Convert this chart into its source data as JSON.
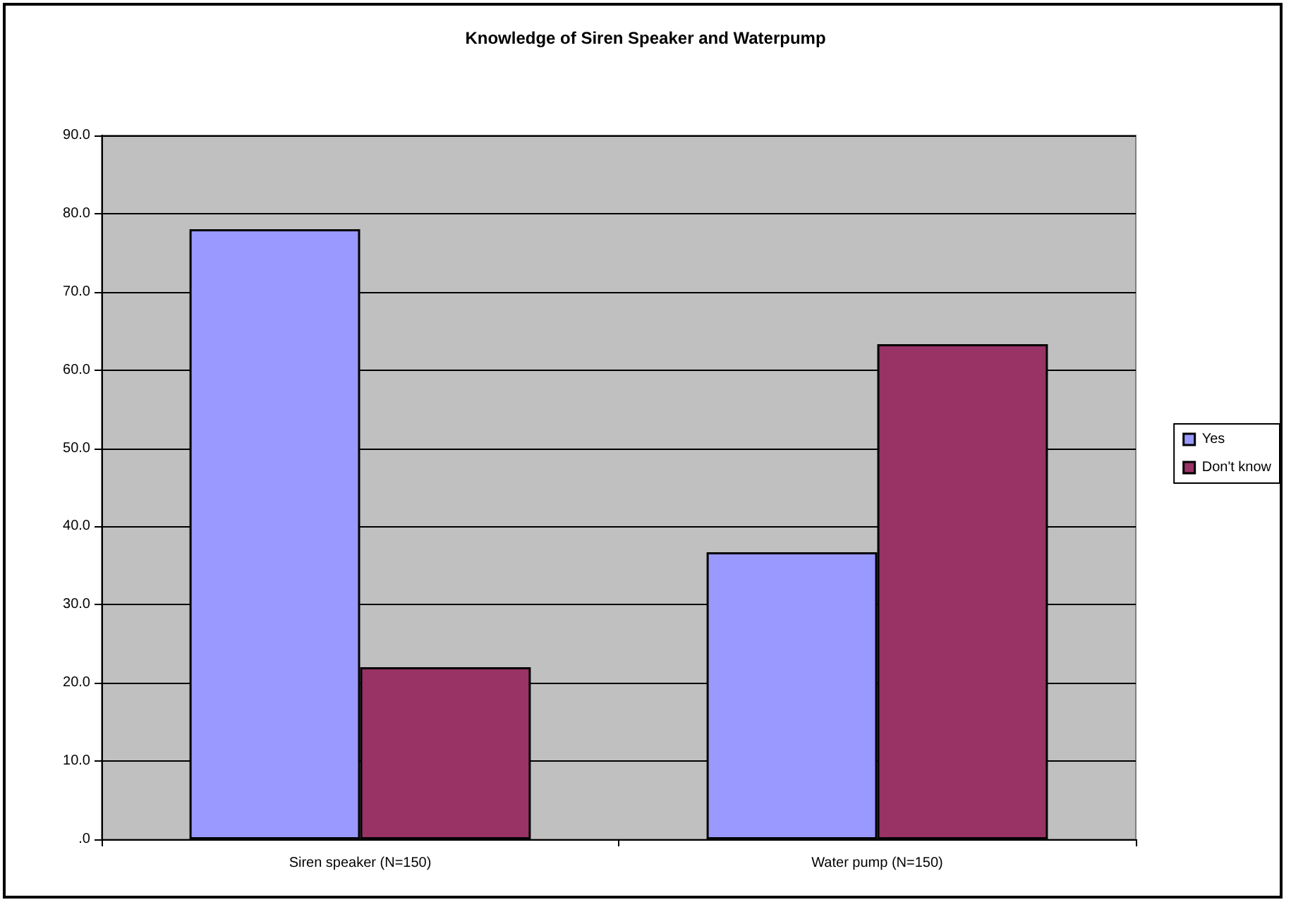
{
  "chart_data": {
    "type": "bar",
    "title": "Knowledge of Siren Speaker and Waterpump",
    "categories": [
      "Siren speaker (N=150)",
      "Water pump (N=150)"
    ],
    "series": [
      {
        "name": "Yes",
        "color": "#9999ff",
        "values": [
          78.0,
          36.7
        ]
      },
      {
        "name": "Don't know",
        "color": "#993366",
        "values": [
          22.0,
          63.3
        ]
      }
    ],
    "ylim": [
      0,
      90
    ],
    "yticks": [
      {
        "value": 0,
        "label": ".0"
      },
      {
        "value": 10,
        "label": "10.0"
      },
      {
        "value": 20,
        "label": "20.0"
      },
      {
        "value": 30,
        "label": "30.0"
      },
      {
        "value": 40,
        "label": "40.0"
      },
      {
        "value": 50,
        "label": "50.0"
      },
      {
        "value": 60,
        "label": "60.0"
      },
      {
        "value": 70,
        "label": "70.0"
      },
      {
        "value": 80,
        "label": "80.0"
      },
      {
        "value": 90,
        "label": "90.0"
      }
    ],
    "grid": "y",
    "legend": "right"
  }
}
